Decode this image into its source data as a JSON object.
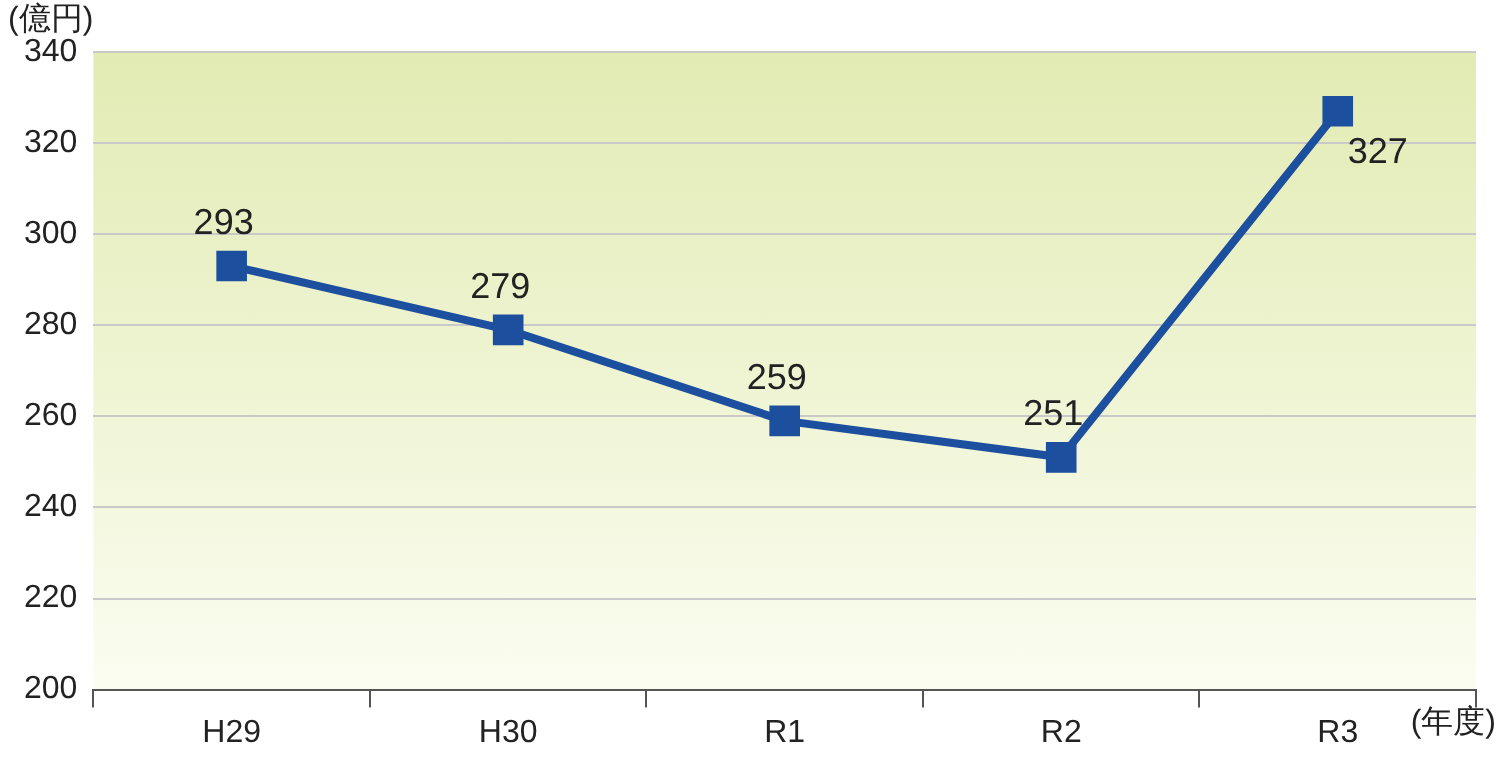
{
  "chart_data": {
    "type": "line",
    "ylabel": "(億円)",
    "xlabel": "(年度)",
    "categories": [
      "H29",
      "H30",
      "R1",
      "R2",
      "R3"
    ],
    "series": [
      {
        "color": "#1c4f9e",
        "values": [
          293,
          279,
          259,
          251,
          327
        ]
      }
    ],
    "ylim": [
      200,
      340
    ],
    "yticks": [
      200,
      220,
      240,
      260,
      280,
      300,
      320,
      340
    ],
    "grid": "y",
    "legend": false,
    "marker": "square",
    "line_style": "solid",
    "data_labels": true
  }
}
